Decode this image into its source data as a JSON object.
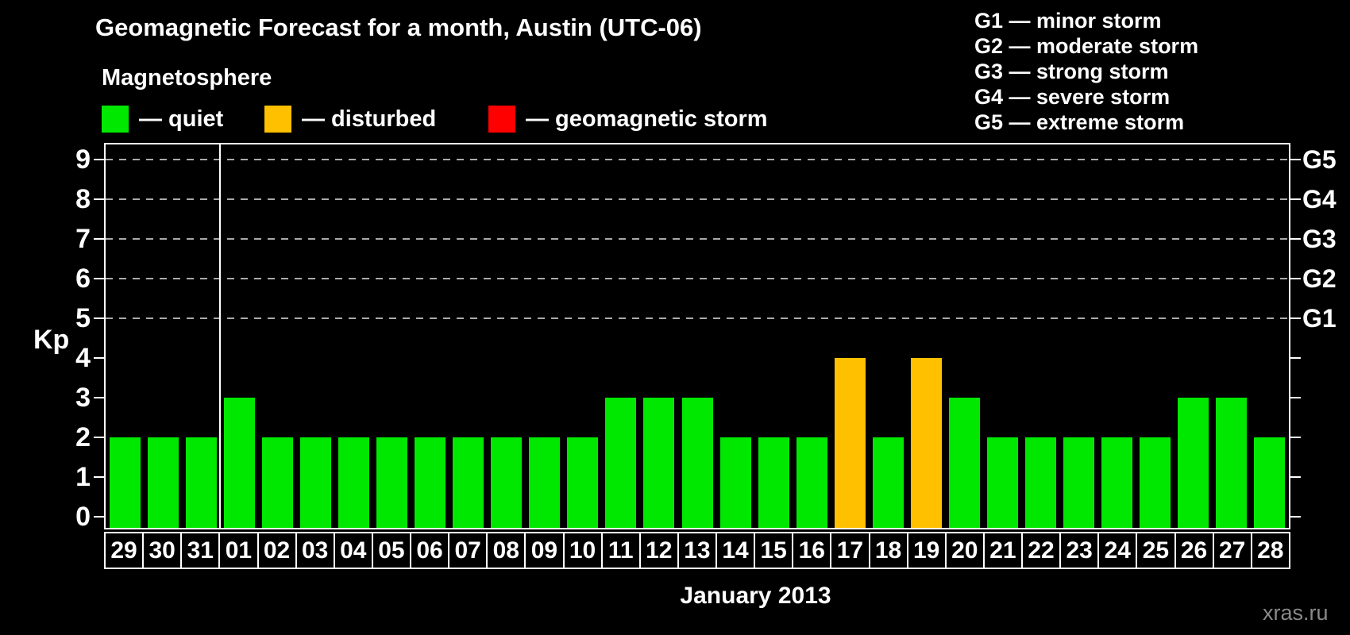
{
  "header": {
    "title": "Geomagnetic Forecast for a month, Austin (UTC-06)",
    "subtitle": "Magnetosphere",
    "legend": [
      {
        "name": "quiet",
        "label": "— quiet",
        "color": "#00E800"
      },
      {
        "name": "disturbed",
        "label": "— disturbed",
        "color": "#FFC000"
      },
      {
        "name": "storm",
        "label": "— geomagnetic storm",
        "color": "#FF0000"
      }
    ],
    "storm_scale": [
      "G1 — minor storm",
      "G2 — moderate storm",
      "G3 — strong storm",
      "G4 — severe storm",
      "G5 — extreme storm"
    ]
  },
  "chart_data": {
    "type": "bar",
    "ylabel": "Kp",
    "xlabel": "January 2013",
    "ylim": [
      0,
      9
    ],
    "yticks": [
      0,
      1,
      2,
      3,
      4,
      5,
      6,
      7,
      8,
      9
    ],
    "gridlines_kp": [
      5,
      6,
      7,
      8,
      9
    ],
    "grid_style": "dashed",
    "right_axis": [
      {
        "kp": 5,
        "label": "G1"
      },
      {
        "kp": 6,
        "label": "G2"
      },
      {
        "kp": 7,
        "label": "G3"
      },
      {
        "kp": 8,
        "label": "G4"
      },
      {
        "kp": 9,
        "label": "G5"
      }
    ],
    "categories": [
      "29",
      "30",
      "31",
      "01",
      "02",
      "03",
      "04",
      "05",
      "06",
      "07",
      "08",
      "09",
      "10",
      "11",
      "12",
      "13",
      "14",
      "15",
      "16",
      "17",
      "18",
      "19",
      "20",
      "21",
      "22",
      "23",
      "24",
      "25",
      "26",
      "27",
      "28"
    ],
    "values": [
      2,
      2,
      2,
      3,
      2,
      2,
      2,
      2,
      2,
      2,
      2,
      2,
      2,
      3,
      3,
      3,
      2,
      2,
      2,
      4,
      2,
      4,
      3,
      2,
      2,
      2,
      2,
      2,
      3,
      3,
      2
    ],
    "statuses": [
      "quiet",
      "quiet",
      "quiet",
      "quiet",
      "quiet",
      "quiet",
      "quiet",
      "quiet",
      "quiet",
      "quiet",
      "quiet",
      "quiet",
      "quiet",
      "quiet",
      "quiet",
      "quiet",
      "quiet",
      "quiet",
      "quiet",
      "disturbed",
      "quiet",
      "disturbed",
      "quiet",
      "quiet",
      "quiet",
      "quiet",
      "quiet",
      "quiet",
      "quiet",
      "quiet",
      "quiet"
    ],
    "colors": {
      "quiet": "#00E800",
      "disturbed": "#FFC000",
      "storm": "#FF0000"
    },
    "month_separator_after_index": 2,
    "legend_position": "top"
  },
  "footer": {
    "watermark": "xras.ru"
  }
}
